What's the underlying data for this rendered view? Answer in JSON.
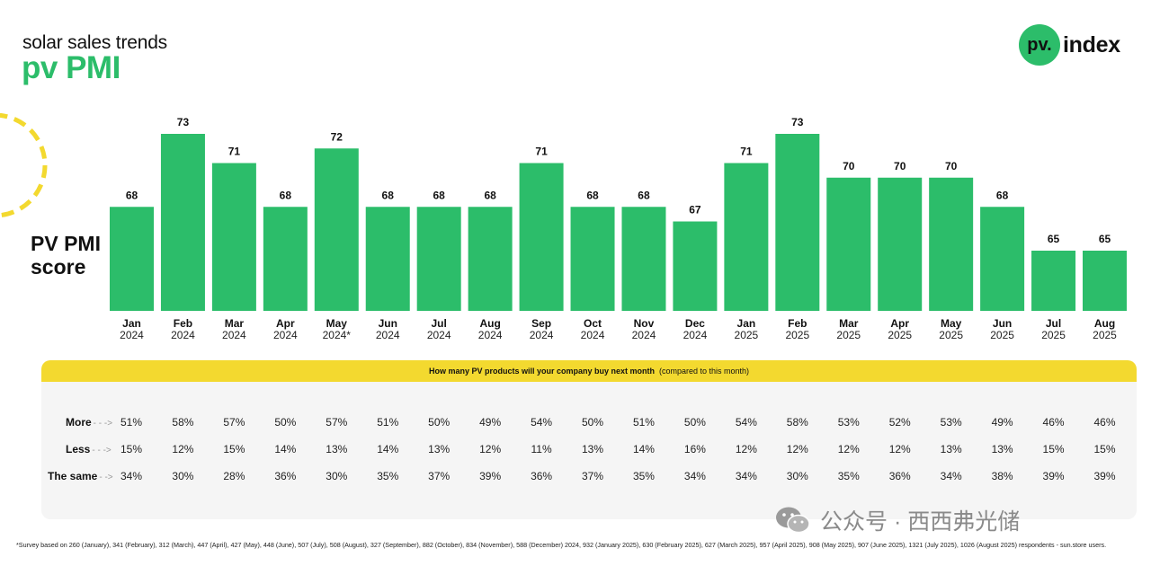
{
  "header": {
    "subtitle": "solar sales trends",
    "title": "pv PMI"
  },
  "logo": {
    "mark": "pv.",
    "text": "index",
    "icon": "pv-index-logo"
  },
  "score_label": {
    "line1": "PV PMI",
    "line2": "score"
  },
  "colors": {
    "bar": "#2cbd6a",
    "accent": "#f3d92f",
    "panel": "#f5f5f5"
  },
  "chart_data": {
    "type": "bar",
    "categories": [
      {
        "month": "Jan",
        "year": "2024"
      },
      {
        "month": "Feb",
        "year": "2024"
      },
      {
        "month": "Mar",
        "year": "2024"
      },
      {
        "month": "Apr",
        "year": "2024"
      },
      {
        "month": "May",
        "year": "2024*"
      },
      {
        "month": "Jun",
        "year": "2024"
      },
      {
        "month": "Jul",
        "year": "2024"
      },
      {
        "month": "Aug",
        "year": "2024"
      },
      {
        "month": "Sep",
        "year": "2024"
      },
      {
        "month": "Oct",
        "year": "2024"
      },
      {
        "month": "Nov",
        "year": "2024"
      },
      {
        "month": "Dec",
        "year": "2024"
      },
      {
        "month": "Jan",
        "year": "2025"
      },
      {
        "month": "Feb",
        "year": "2025"
      },
      {
        "month": "Mar",
        "year": "2025"
      },
      {
        "month": "Apr",
        "year": "2025"
      },
      {
        "month": "May",
        "year": "2025"
      },
      {
        "month": "Jun",
        "year": "2025"
      },
      {
        "month": "Jul",
        "year": "2025"
      },
      {
        "month": "Aug",
        "year": "2025"
      }
    ],
    "values": [
      68,
      73,
      71,
      68,
      72,
      68,
      68,
      68,
      71,
      68,
      68,
      67,
      71,
      73,
      70,
      70,
      70,
      68,
      65,
      65
    ],
    "ylabel": "PV PMI score",
    "data_labels": true,
    "grid": false
  },
  "survey": {
    "question": "How many PV products will your company buy next month",
    "question_suffix": "(compared to this month)",
    "rows": [
      {
        "label": "More",
        "arrow": "- - ->",
        "values": [
          "51%",
          "58%",
          "57%",
          "50%",
          "57%",
          "51%",
          "50%",
          "49%",
          "54%",
          "50%",
          "51%",
          "50%",
          "54%",
          "58%",
          "53%",
          "52%",
          "53%",
          "49%",
          "46%",
          "46%"
        ]
      },
      {
        "label": "Less",
        "arrow": "- - ->",
        "values": [
          "15%",
          "12%",
          "15%",
          "14%",
          "13%",
          "14%",
          "13%",
          "12%",
          "11%",
          "13%",
          "14%",
          "16%",
          "12%",
          "12%",
          "12%",
          "12%",
          "13%",
          "13%",
          "15%",
          "15%"
        ]
      },
      {
        "label": "The same",
        "arrow": "- ->",
        "values": [
          "34%",
          "30%",
          "28%",
          "36%",
          "30%",
          "35%",
          "37%",
          "39%",
          "36%",
          "37%",
          "35%",
          "34%",
          "34%",
          "30%",
          "35%",
          "36%",
          "34%",
          "38%",
          "39%",
          "39%"
        ]
      }
    ]
  },
  "footnote": "*Survey based on 260 (January), 341 (February), 312 (March), 447 (April), 427 (May), 448 (June), 507 (July), 508 (August), 327 (September), 882 (October), 834 (November), 588 (December) 2024, 932 (January 2025), 630 (February 2025), 627 (March 2025), 957 (April 2025), 908 (May 2025), 907 (June 2025), 1321 (July 2025), 1026 (August 2025) respondents - sun.store users.",
  "watermark": {
    "text": "公众号 · 西西弗光储",
    "icon": "wechat-icon"
  }
}
